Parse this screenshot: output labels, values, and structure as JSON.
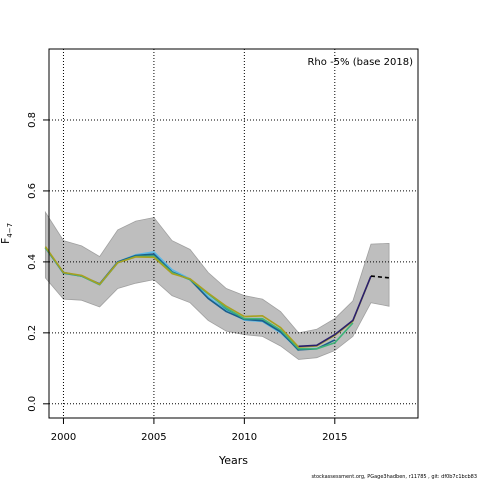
{
  "chart_data": {
    "type": "line",
    "title": "Rho -5% (base 2018)",
    "xlabel": "Years",
    "ylabel": "F",
    "ylabel_sub": "4−7",
    "footer": "stockassessment.org, PGage3hadben, r11785 , git: df0b7c1bcb83",
    "xlim": [
      1999.2,
      2019.6
    ],
    "ylim": [
      -0.04,
      1.0
    ],
    "x_ticks": [
      2000,
      2005,
      2010,
      2015
    ],
    "y_ticks": [
      0.0,
      0.2,
      0.4,
      0.6,
      0.8
    ],
    "y_tick_labels": [
      "0.0",
      "0.2",
      "0.4",
      "0.6",
      "0.8"
    ],
    "grid": true,
    "band": {
      "color": "#bebebe",
      "x": [
        1999,
        2000,
        2001,
        2002,
        2003,
        2004,
        2005,
        2006,
        2007,
        2008,
        2009,
        2010,
        2011,
        2012,
        2013,
        2014,
        2015,
        2016,
        2017,
        2018
      ],
      "upper": [
        0.54,
        0.46,
        0.445,
        0.415,
        0.49,
        0.515,
        0.525,
        0.46,
        0.435,
        0.37,
        0.325,
        0.305,
        0.295,
        0.26,
        0.2,
        0.21,
        0.24,
        0.29,
        0.45,
        0.452
      ],
      "lower": [
        0.355,
        0.295,
        0.292,
        0.273,
        0.325,
        0.34,
        0.35,
        0.305,
        0.285,
        0.235,
        0.205,
        0.195,
        0.19,
        0.163,
        0.125,
        0.13,
        0.15,
        0.19,
        0.285,
        0.275
      ]
    },
    "series": [
      {
        "color": "#2b8a8a",
        "x": [
          1999,
          2000,
          2001,
          2002,
          2003,
          2004,
          2005,
          2006,
          2007,
          2008,
          2009,
          2010,
          2011,
          2012,
          2013
        ],
        "values": [
          0.44,
          0.368,
          0.36,
          0.336,
          0.398,
          0.415,
          0.418,
          0.37,
          0.35,
          0.3,
          0.265,
          0.238,
          0.235,
          0.205,
          0.15
        ]
      },
      {
        "color": "#5bb8e6",
        "x": [
          1999,
          2000,
          2001,
          2002,
          2003,
          2004,
          2005,
          2006,
          2007,
          2008,
          2009,
          2010,
          2011,
          2012,
          2013,
          2014
        ],
        "values": [
          0.44,
          0.37,
          0.36,
          0.338,
          0.4,
          0.42,
          0.428,
          0.378,
          0.352,
          0.302,
          0.262,
          0.236,
          0.232,
          0.2,
          0.153,
          0.156
        ]
      },
      {
        "color": "#1a5e8c",
        "x": [
          1999,
          2000,
          2001,
          2002,
          2003,
          2004,
          2005,
          2006,
          2007,
          2008,
          2009,
          2010,
          2011,
          2012,
          2013,
          2014,
          2015
        ],
        "values": [
          0.44,
          0.37,
          0.36,
          0.338,
          0.4,
          0.418,
          0.422,
          0.372,
          0.35,
          0.297,
          0.26,
          0.238,
          0.234,
          0.203,
          0.152,
          0.155,
          0.18
        ]
      },
      {
        "color": "#3fb37a",
        "x": [
          1999,
          2000,
          2001,
          2002,
          2003,
          2004,
          2005,
          2006,
          2007,
          2008,
          2009,
          2010,
          2011,
          2012,
          2013,
          2014,
          2015,
          2016
        ],
        "values": [
          0.44,
          0.37,
          0.36,
          0.336,
          0.398,
          0.415,
          0.416,
          0.37,
          0.35,
          0.31,
          0.27,
          0.24,
          0.24,
          0.208,
          0.155,
          0.155,
          0.172,
          0.228
        ]
      },
      {
        "color": "#a8a020",
        "x": [
          1999,
          2000,
          2001,
          2002,
          2003,
          2004,
          2005,
          2006,
          2007,
          2008,
          2009,
          2010,
          2011,
          2012,
          2013,
          2014,
          2015,
          2016,
          2017
        ],
        "values": [
          0.443,
          0.37,
          0.362,
          0.337,
          0.398,
          0.414,
          0.413,
          0.367,
          0.352,
          0.312,
          0.275,
          0.246,
          0.248,
          0.215,
          0.16,
          0.163,
          0.193,
          0.233,
          0.36
        ]
      },
      {
        "color": "#2a1f6e",
        "x": [
          2013,
          2014,
          2015,
          2016,
          2017
        ],
        "values": [
          0.162,
          0.165,
          0.195,
          0.235,
          0.36
        ]
      },
      {
        "color": "#000000",
        "dashed": true,
        "x": [
          2017,
          2018
        ],
        "values": [
          0.36,
          0.355
        ]
      }
    ]
  }
}
